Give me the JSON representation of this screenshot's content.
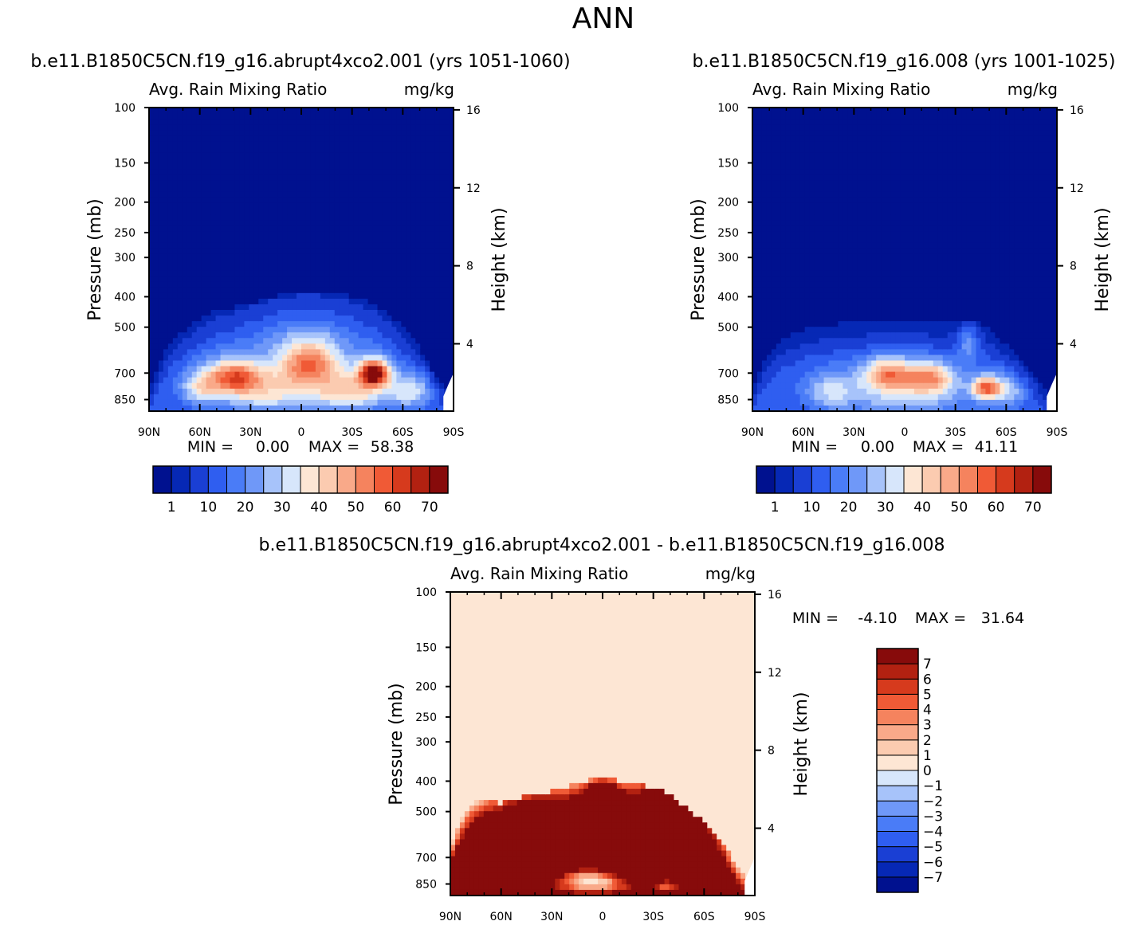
{
  "page_title": "ANN",
  "colors": {
    "seq_scale": [
      "#00118f",
      "#0628b5",
      "#1a3fd4",
      "#2f5ef0",
      "#4a7cf7",
      "#6f98f8",
      "#a7c3fa",
      "#d7e6fb",
      "#fde6d4",
      "#fbcbb0",
      "#f9a989",
      "#f5835e",
      "#f05a36",
      "#d63a1d",
      "#b22111",
      "#870b0b"
    ],
    "diff_scale": [
      "#00118f",
      "#0628b5",
      "#1a3fd4",
      "#2f5ef0",
      "#4a7cf7",
      "#6f98f8",
      "#a7c3fa",
      "#d7e6fb",
      "#fde6d4",
      "#fbcbb0",
      "#f9a989",
      "#f5835e",
      "#f05a36",
      "#d63a1d",
      "#b22111",
      "#870b0b"
    ]
  },
  "chart_data": [
    {
      "type": "heatmap",
      "case_title": "b.e11.B1850C5CN.f19_g16.abrupt4xco2.001 (yrs 1051-1060)",
      "variable": "Avg. Rain Mixing Ratio",
      "units": "mg/kg",
      "ylabel": "Pressure (mb)",
      "ylabel_right": "Height (km)",
      "x_ticks": [
        "90N",
        "60N",
        "30N",
        "0",
        "30S",
        "60S",
        "90S"
      ],
      "y_ticks": [
        "100",
        "150",
        "200",
        "250",
        "300",
        "400",
        "500",
        "700",
        "850"
      ],
      "height_ticks": [
        "16",
        "12",
        "8",
        "4"
      ],
      "stats": {
        "min_label": "MIN =",
        "min": "0.00",
        "max_label": "MAX =",
        "max": "58.38"
      },
      "colorbar_levels": [
        1,
        5,
        10,
        15,
        20,
        25,
        30,
        35,
        40,
        45,
        50,
        55,
        60,
        65,
        70
      ],
      "colorbar_labels": [
        "1",
        "10",
        "20",
        "30",
        "40",
        "50",
        "60",
        "70"
      ],
      "field": {
        "top_boundary": [
          [
            90,
            800
          ],
          [
            84,
            650
          ],
          [
            78,
            560
          ],
          [
            72,
            520
          ],
          [
            66,
            500
          ],
          [
            60,
            470
          ],
          [
            54,
            450
          ],
          [
            48,
            440
          ],
          [
            42,
            440
          ],
          [
            36,
            425
          ],
          [
            30,
            420
          ],
          [
            24,
            410
          ],
          [
            18,
            400
          ],
          [
            12,
            395
          ],
          [
            6,
            390
          ],
          [
            0,
            385
          ],
          [
            -6,
            385
          ],
          [
            -12,
            385
          ],
          [
            -18,
            390
          ],
          [
            -24,
            395
          ],
          [
            -30,
            400
          ],
          [
            -36,
            410
          ],
          [
            -42,
            420
          ],
          [
            -48,
            440
          ],
          [
            -54,
            470
          ],
          [
            -60,
            500
          ],
          [
            -66,
            540
          ],
          [
            -72,
            610
          ],
          [
            -78,
            700
          ],
          [
            -84,
            780
          ],
          [
            -90,
            850
          ]
        ],
        "blobs": [
          {
            "lat": -43,
            "p": 700,
            "sx": 9,
            "sp": 70,
            "v": 58
          },
          {
            "lat": 40,
            "p": 720,
            "sx": 16,
            "sp": 90,
            "v": 38
          },
          {
            "lat": -5,
            "p": 650,
            "sx": 18,
            "sp": 110,
            "v": 35
          },
          {
            "lat": 20,
            "p": 800,
            "sx": 30,
            "sp": 140,
            "v": 25
          },
          {
            "lat": -30,
            "p": 800,
            "sx": 25,
            "sp": 120,
            "v": 28
          },
          {
            "lat": 60,
            "p": 780,
            "sx": 12,
            "sp": 100,
            "v": 22
          },
          {
            "lat": -65,
            "p": 800,
            "sx": 12,
            "sp": 100,
            "v": 20
          },
          {
            "lat": 0,
            "p": 550,
            "sx": 50,
            "sp": 160,
            "v": 8
          }
        ]
      }
    },
    {
      "type": "heatmap",
      "case_title": "b.e11.B1850C5CN.f19_g16.008 (yrs 1001-1025)",
      "variable": "Avg. Rain Mixing Ratio",
      "units": "mg/kg",
      "ylabel": "Pressure (mb)",
      "ylabel_right": "Height (km)",
      "x_ticks": [
        "90N",
        "60N",
        "30N",
        "0",
        "30S",
        "60S",
        "90S"
      ],
      "y_ticks": [
        "100",
        "150",
        "200",
        "250",
        "300",
        "400",
        "500",
        "700",
        "850"
      ],
      "height_ticks": [
        "16",
        "12",
        "8",
        "4"
      ],
      "stats": {
        "min_label": "MIN =",
        "min": "0.00",
        "max_label": "MAX =",
        "max": "41.11"
      },
      "colorbar_levels": [
        1,
        5,
        10,
        15,
        20,
        25,
        30,
        35,
        40,
        45,
        50,
        55,
        60,
        65,
        70
      ],
      "colorbar_labels": [
        "1",
        "10",
        "20",
        "30",
        "40",
        "50",
        "60",
        "70"
      ],
      "field": {
        "top_boundary": [
          [
            90,
            800
          ],
          [
            84,
            650
          ],
          [
            78,
            580
          ],
          [
            72,
            550
          ],
          [
            66,
            530
          ],
          [
            60,
            510
          ],
          [
            54,
            500
          ],
          [
            48,
            495
          ],
          [
            42,
            490
          ],
          [
            36,
            485
          ],
          [
            30,
            485
          ],
          [
            24,
            480
          ],
          [
            18,
            480
          ],
          [
            12,
            478
          ],
          [
            6,
            475
          ],
          [
            0,
            478
          ],
          [
            -6,
            480
          ],
          [
            -12,
            482
          ],
          [
            -18,
            485
          ],
          [
            -24,
            485
          ],
          [
            -30,
            480
          ],
          [
            -36,
            470
          ],
          [
            -42,
            480
          ],
          [
            -48,
            500
          ],
          [
            -54,
            530
          ],
          [
            -60,
            570
          ],
          [
            -66,
            620
          ],
          [
            -72,
            680
          ],
          [
            -78,
            740
          ],
          [
            -84,
            800
          ],
          [
            -90,
            850
          ]
        ],
        "blobs": [
          {
            "lat": -48,
            "p": 780,
            "sx": 8,
            "sp": 60,
            "v": 40
          },
          {
            "lat": 10,
            "p": 700,
            "sx": 14,
            "sp": 80,
            "v": 30
          },
          {
            "lat": -15,
            "p": 720,
            "sx": 14,
            "sp": 80,
            "v": 28
          },
          {
            "lat": 0,
            "p": 800,
            "sx": 40,
            "sp": 150,
            "v": 22
          },
          {
            "lat": -38,
            "p": 560,
            "sx": 6,
            "sp": 70,
            "v": 15
          },
          {
            "lat": 45,
            "p": 800,
            "sx": 15,
            "sp": 110,
            "v": 16
          },
          {
            "lat": -60,
            "p": 800,
            "sx": 12,
            "sp": 100,
            "v": 18
          }
        ]
      }
    },
    {
      "type": "heatmap",
      "case_title": "b.e11.B1850C5CN.f19_g16.abrupt4xco2.001 - b.e11.B1850C5CN.f19_g16.008",
      "variable": "Avg. Rain Mixing Ratio",
      "units": "mg/kg",
      "ylabel": "Pressure (mb)",
      "ylabel_right": "Height (km)",
      "x_ticks": [
        "90N",
        "60N",
        "30N",
        "0",
        "30S",
        "60S",
        "90S"
      ],
      "y_ticks": [
        "100",
        "150",
        "200",
        "250",
        "300",
        "400",
        "500",
        "700",
        "850"
      ],
      "height_ticks": [
        "16",
        "12",
        "8",
        "4"
      ],
      "stats": {
        "min_label": "MIN =",
        "min": "-4.10",
        "max_label": "MAX =",
        "max": "31.64"
      },
      "colorbar_levels": [
        -7,
        -6,
        -5,
        -4,
        -3,
        -2,
        -1,
        0,
        1,
        2,
        3,
        4,
        5,
        6,
        7
      ],
      "colorbar_labels": [
        "-7",
        "-6",
        "-5",
        "-4",
        "-3",
        "-2",
        "-1",
        "0",
        "1",
        "2",
        "3",
        "4",
        "5",
        "6",
        "7"
      ],
      "field": {
        "top_boundary": [
          [
            90,
            650
          ],
          [
            84,
            540
          ],
          [
            78,
            480
          ],
          [
            72,
            460
          ],
          [
            66,
            455
          ],
          [
            60,
            470
          ],
          [
            54,
            460
          ],
          [
            48,
            450
          ],
          [
            42,
            445
          ],
          [
            36,
            440
          ],
          [
            30,
            430
          ],
          [
            24,
            420
          ],
          [
            18,
            410
          ],
          [
            12,
            400
          ],
          [
            6,
            395
          ],
          [
            0,
            395
          ],
          [
            -6,
            395
          ],
          [
            -12,
            400
          ],
          [
            -18,
            405
          ],
          [
            -24,
            410
          ],
          [
            -30,
            420
          ],
          [
            -36,
            430
          ],
          [
            -42,
            450
          ],
          [
            -48,
            480
          ],
          [
            -54,
            510
          ],
          [
            -60,
            540
          ],
          [
            -66,
            580
          ],
          [
            -72,
            640
          ],
          [
            -78,
            720
          ],
          [
            -84,
            800
          ],
          [
            -90,
            850
          ]
        ],
        "blobs": [
          {
            "lat": 0,
            "p": 640,
            "sx": 60,
            "sp": 180,
            "v": 12
          },
          {
            "lat": 0,
            "p": 430,
            "sx": 8,
            "sp": 30,
            "v": 9
          },
          {
            "lat": -40,
            "p": 520,
            "sx": 20,
            "sp": 120,
            "v": 9
          },
          {
            "lat": 45,
            "p": 600,
            "sx": 20,
            "sp": 140,
            "v": 9
          },
          {
            "lat": 8,
            "p": 800,
            "sx": 22,
            "sp": 90,
            "v": -11
          },
          {
            "lat": -38,
            "p": 860,
            "sx": 8,
            "sp": 50,
            "v": -6
          },
          {
            "lat": 0,
            "p": 860,
            "sx": 30,
            "sp": 60,
            "v": -4
          }
        ]
      }
    }
  ]
}
